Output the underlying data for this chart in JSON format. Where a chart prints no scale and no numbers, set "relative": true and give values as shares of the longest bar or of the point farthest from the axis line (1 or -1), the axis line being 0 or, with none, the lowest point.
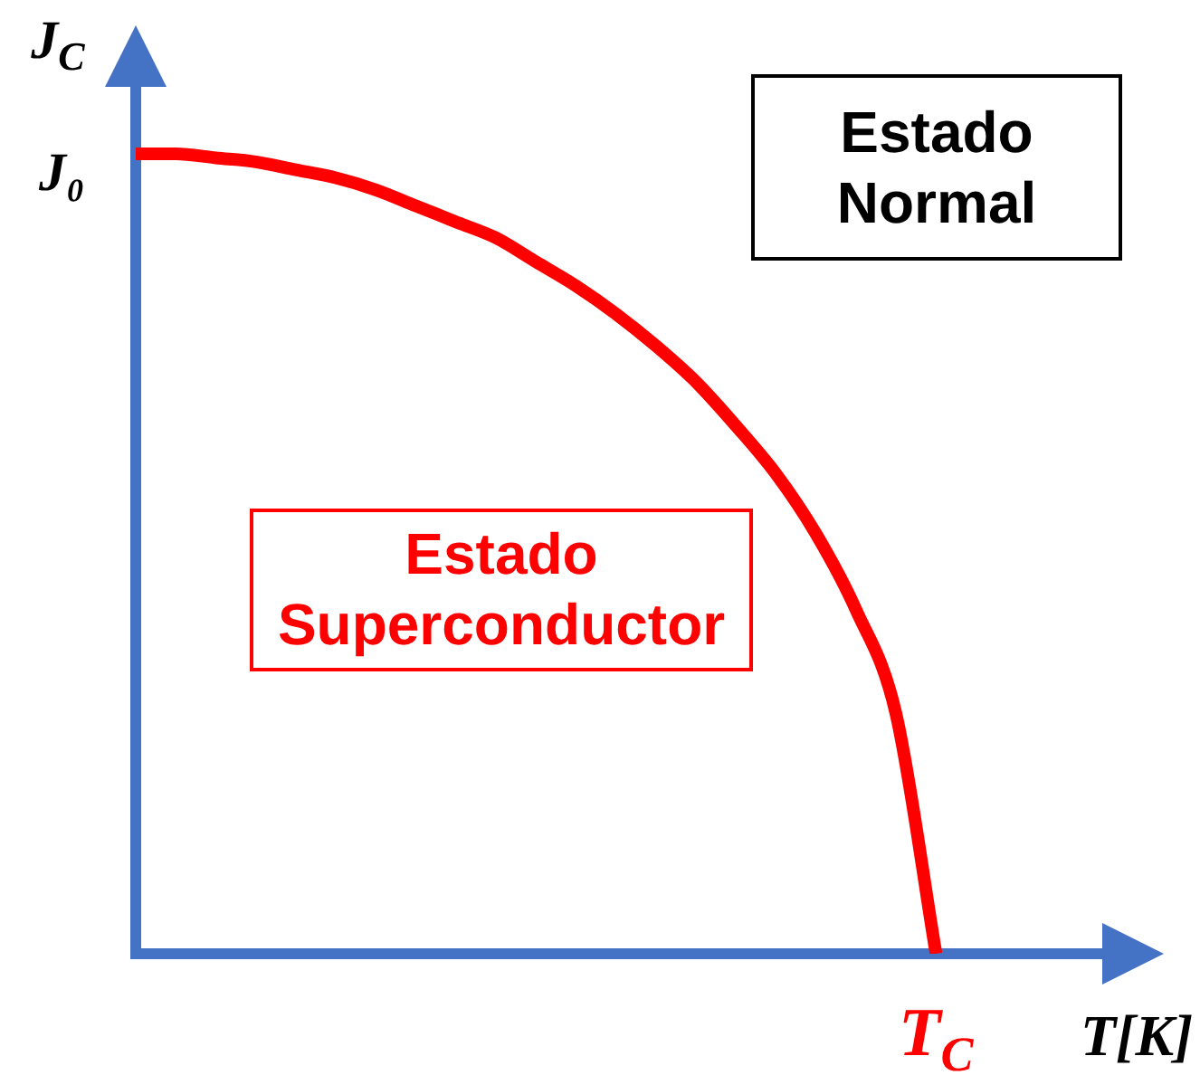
{
  "chart_data": {
    "type": "line",
    "xlabel": "T[K]",
    "ylabel": "J$_{C}$",
    "categories": [
      null,
      null,
      null,
      null,
      null,
      null,
      null,
      null,
      null,
      null,
      null,
      null,
      null,
      null,
      null,
      null,
      null,
      null,
      null,
      null,
      null
    ],
    "series": [
      {
        "color": "#ff0000",
        "values": [
          1,
          1,
          0.995,
          0.99,
          0.98,
          0.97,
          0.955,
          0.935,
          0.915,
          0.895,
          0.865,
          0.835,
          0.8,
          0.76,
          0.715,
          0.66,
          0.6,
          0.525,
          0.43,
          0.3,
          0
        ]
      }
    ],
    "relative": true,
    "annotations": [
      "Estado Normal",
      "Estado Superconductor",
      "J₀",
      "T$_{C}$"
    ]
  }
}
